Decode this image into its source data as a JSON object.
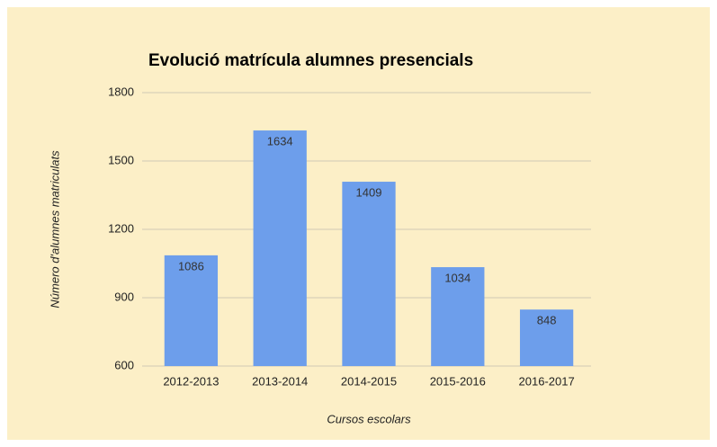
{
  "chart_data": {
    "type": "bar",
    "title": "Evolució matrícula alumnes presencials",
    "xlabel": "Cursos escolars",
    "ylabel": "Número d'alumnes matriculats",
    "categories": [
      "2012-2013",
      "2013-2014",
      "2014-2015",
      "2015-2016",
      "2016-2017"
    ],
    "values": [
      1086,
      1634,
      1409,
      1034,
      848
    ],
    "color": "#6d9eeb",
    "ylim": [
      600,
      1800
    ],
    "yticks": [
      600,
      900,
      1200,
      1500,
      1800
    ],
    "grid": true
  }
}
